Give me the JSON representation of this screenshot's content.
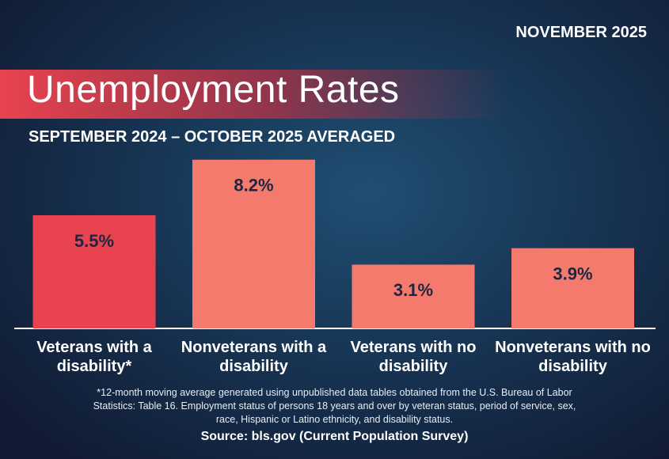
{
  "chart_data": {
    "type": "bar",
    "date": "NOVEMBER 2025",
    "title": "Unemployment Rates",
    "subtitle": "SEPTEMBER 2024 – OCTOBER 2025 AVERAGED",
    "categories": [
      "Veterans with a disability*",
      "Nonveterans with a disability",
      "Veterans with no disability",
      "Nonveterans with no disability"
    ],
    "values": [
      5.5,
      8.2,
      3.1,
      3.9
    ],
    "value_labels": [
      "5.5%",
      "8.2%",
      "3.1%",
      "3.9%"
    ],
    "colors": [
      "#e9434f",
      "#f47a6d",
      "#f47a6d",
      "#f47a6d"
    ],
    "footnote": "*12-month moving average generated using unpublished data tables obtained from the U.S. Bureau of Labor Statistics: Table 16. Employment status of persons 18 years and over by veteran status, period of service, sex, race, Hispanic or Latino ethnicity, and disability status.",
    "source": "Source: bls.gov (Current Population Survey)"
  }
}
